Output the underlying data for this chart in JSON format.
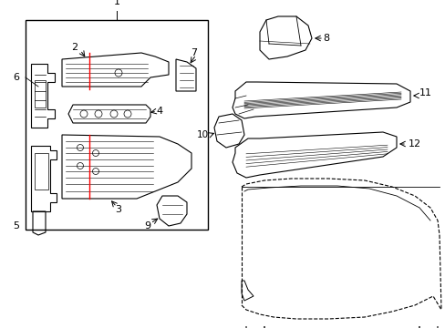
{
  "bg_color": "#ffffff",
  "line_color": "#000000",
  "red_color": "#ff0000",
  "figsize": [
    4.89,
    3.6
  ],
  "dpi": 100,
  "xlim": [
    0,
    489
  ],
  "ylim": [
    0,
    360
  ]
}
